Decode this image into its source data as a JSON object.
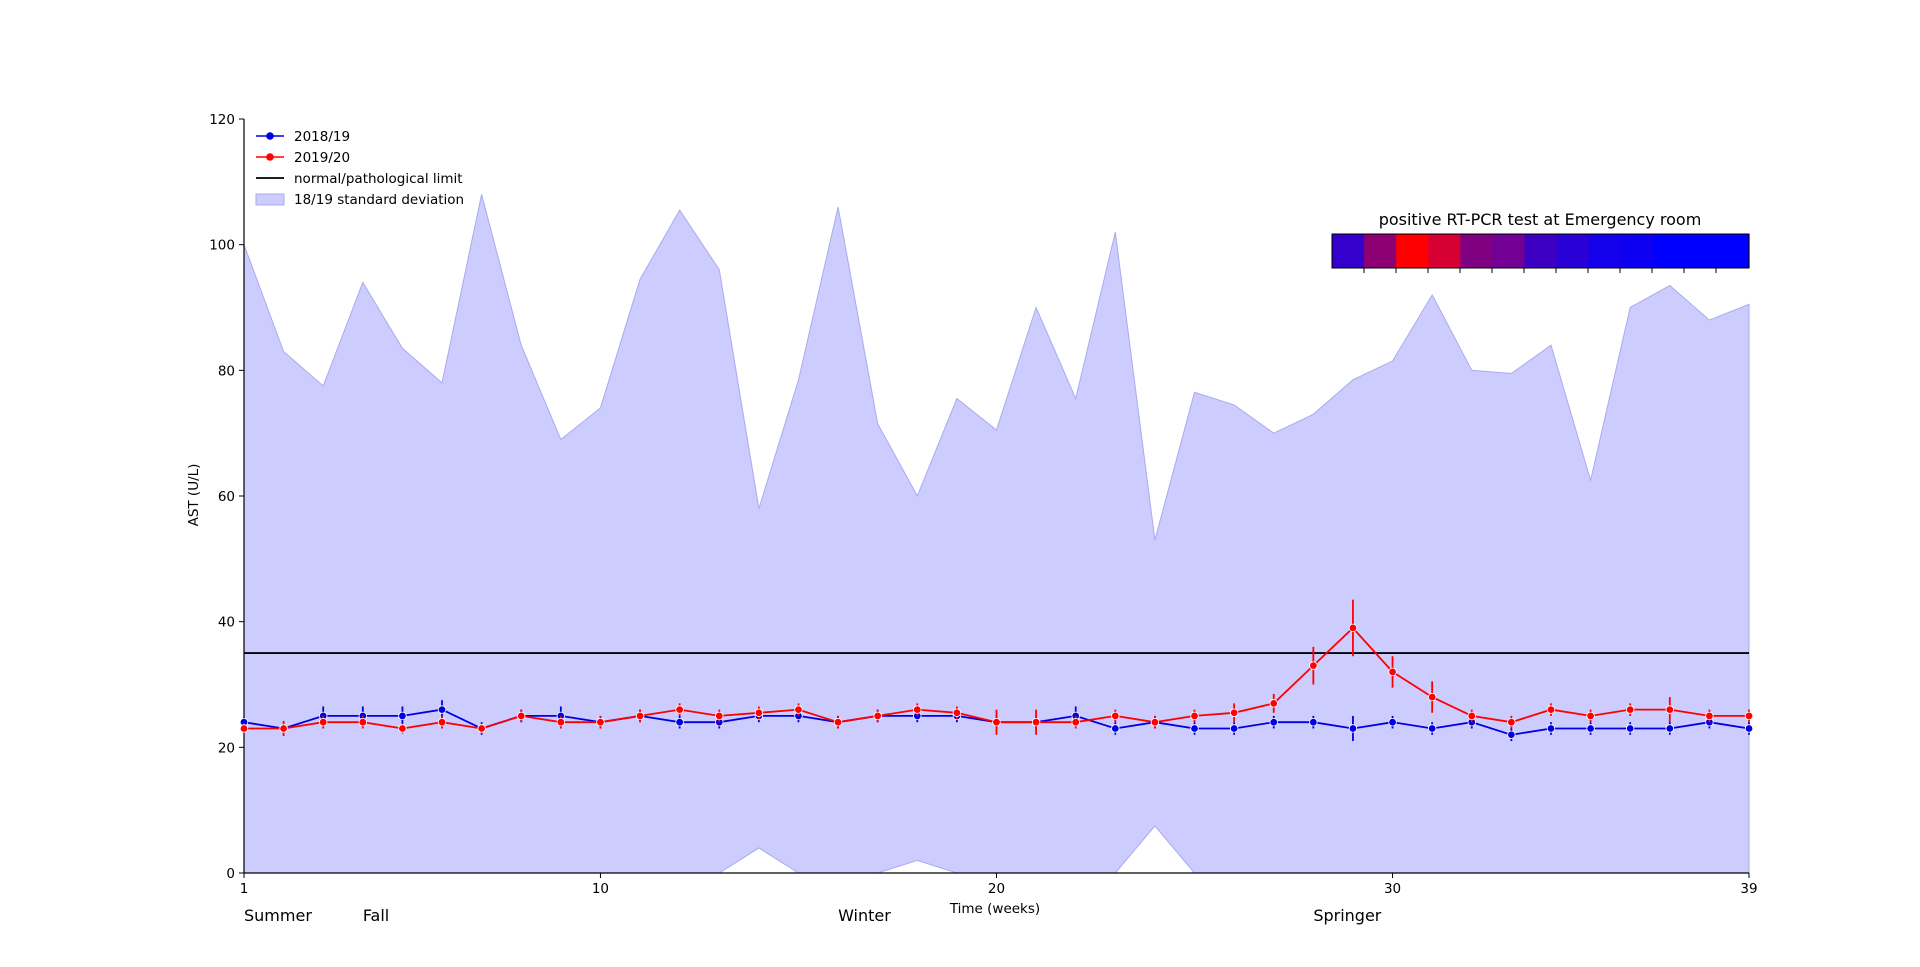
{
  "chart_data": {
    "type": "line",
    "xlabel": "Time (weeks)",
    "ylabel": "AST (U/L)",
    "xlim": [
      1,
      39
    ],
    "ylim": [
      0,
      120
    ],
    "xticks": [
      1,
      10,
      20,
      30,
      39
    ],
    "yticks": [
      0,
      20,
      40,
      60,
      80,
      100,
      120
    ],
    "grid": false,
    "legend_position": "top-left",
    "legend": {
      "s1": "2018/19",
      "s2": "2019/20",
      "limit": "normal/pathological limit",
      "band": "18/19 standard deviation"
    },
    "season_labels": [
      {
        "text": "Summer",
        "x": 1
      },
      {
        "text": "Fall",
        "x": 4
      },
      {
        "text": "Winter",
        "x": 16
      },
      {
        "text": "Springer",
        "x": 28
      }
    ],
    "limit_value": 35,
    "colors": {
      "s1": "#0000e0",
      "s2": "#ff0000",
      "band": "#ccccff",
      "band_edge": "#aaaaee",
      "limit": "#000000"
    },
    "x": [
      1,
      2,
      3,
      4,
      5,
      6,
      7,
      8,
      9,
      10,
      11,
      12,
      13,
      14,
      15,
      16,
      17,
      18,
      19,
      20,
      21,
      22,
      23,
      24,
      25,
      26,
      27,
      28,
      29,
      30,
      31,
      32,
      33,
      34,
      35,
      36,
      37,
      38,
      39
    ],
    "series": [
      {
        "name": "2018/19",
        "values": [
          24,
          23,
          25,
          25,
          25,
          26,
          23,
          25,
          25,
          24,
          25,
          24,
          24,
          25,
          25,
          24,
          25,
          25,
          25,
          24,
          24,
          25,
          23,
          24,
          23,
          23,
          24,
          24,
          23,
          24,
          23,
          24,
          22,
          23,
          23,
          23,
          23,
          24,
          23
        ],
        "err": [
          0.8,
          0.8,
          1.5,
          1.5,
          1.5,
          1.5,
          1.0,
          1.0,
          1.5,
          1.0,
          1.0,
          1.0,
          1.0,
          1.0,
          1.0,
          1.0,
          1.0,
          1.0,
          1.0,
          1.0,
          1.0,
          1.5,
          1.0,
          1.0,
          1.0,
          1.0,
          1.0,
          1.0,
          2.0,
          1.0,
          1.0,
          1.0,
          1.0,
          1.0,
          1.0,
          1.0,
          1.0,
          1.0,
          1.0
        ]
      },
      {
        "name": "2019/20",
        "values": [
          23,
          23,
          24,
          24,
          23,
          24,
          23,
          25,
          24,
          24,
          25,
          26,
          25,
          25.5,
          26,
          24,
          25,
          26,
          25.5,
          24,
          24,
          24,
          25,
          24,
          25,
          25.5,
          27,
          33,
          39,
          32,
          28,
          25,
          24,
          26,
          25,
          26,
          26,
          25,
          25
        ],
        "err": [
          0.8,
          1.2,
          1.0,
          1.0,
          0.8,
          1.0,
          0.8,
          1.0,
          1.0,
          1.0,
          1.0,
          1.0,
          1.0,
          1.0,
          1.0,
          1.0,
          1.0,
          1.0,
          1.0,
          2.0,
          2.0,
          1.0,
          1.0,
          1.0,
          1.0,
          1.5,
          1.5,
          3.0,
          4.5,
          2.5,
          2.5,
          1.0,
          1.0,
          1.0,
          1.0,
          1.0,
          2.0,
          1.0,
          1.0
        ]
      }
    ],
    "band": {
      "upper": [
        100,
        83,
        77.5,
        94,
        83.5,
        78,
        108,
        84,
        69,
        74,
        94.5,
        105.5,
        96,
        58,
        78.5,
        106,
        71.5,
        60,
        75.5,
        70.5,
        90,
        75.5,
        102,
        53,
        76.5,
        74.5,
        70,
        73,
        78.5,
        81.5,
        92,
        80,
        79.5,
        84,
        62.5,
        90,
        93.5,
        88,
        90.5
      ],
      "lower": [
        0,
        0,
        0,
        0,
        0,
        0,
        0,
        0,
        0,
        0,
        0,
        0,
        0,
        4,
        -5,
        0,
        0,
        2,
        -4,
        0,
        0,
        0,
        0,
        7.5,
        -5,
        0,
        0,
        0,
        0,
        0,
        0,
        0,
        0,
        0,
        0,
        0,
        0,
        0,
        0
      ]
    },
    "heatmap": {
      "title": "positive RT-PCR test at Emergency room",
      "cells": [
        "#3300cc",
        "#8c0073",
        "#ff0000",
        "#d60033",
        "#7f0080",
        "#730094",
        "#3d00c2",
        "#2900d6",
        "#1400eb",
        "#0d00f2",
        "#0000ff",
        "#0000ff",
        "#0000ff"
      ]
    }
  }
}
